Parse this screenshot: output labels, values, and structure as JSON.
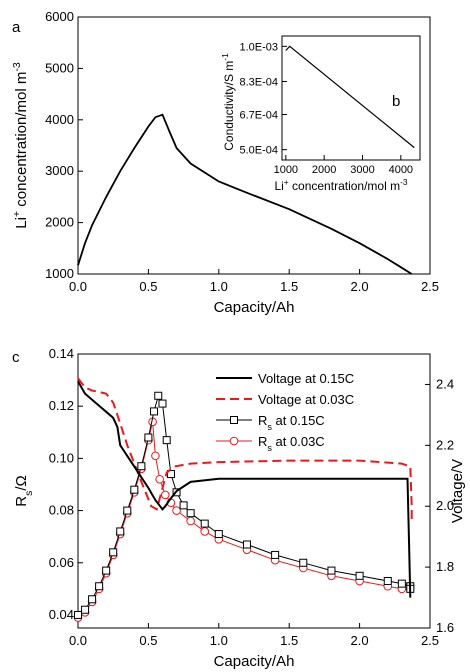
{
  "chart_data": [
    {
      "panel": "a",
      "type": "line",
      "xlabel": "Capacity/Ah",
      "ylabel": {
        "pre": "Li",
        "sup": "+",
        "post": " concentration/mol m",
        "sup2": "-3"
      },
      "xlim": [
        0,
        2.5
      ],
      "ylim": [
        1000,
        6000
      ],
      "xticks": [
        0.0,
        0.5,
        1.0,
        1.5,
        2.0,
        2.5
      ],
      "xtick_labels": [
        "0.0",
        "0.5",
        "1.0",
        "1.5",
        "2.0",
        "2.5"
      ],
      "yticks": [
        1000,
        2000,
        3000,
        4000,
        5000,
        6000
      ],
      "ytick_labels": [
        "1000",
        "2000",
        "3000",
        "4000",
        "5000",
        "6000"
      ],
      "series": [
        {
          "color": "#000000",
          "x": [
            0.0,
            0.05,
            0.1,
            0.2,
            0.3,
            0.4,
            0.5,
            0.55,
            0.6,
            0.65,
            0.7,
            0.8,
            1.0,
            1.2,
            1.5,
            1.8,
            2.0,
            2.2,
            2.3,
            2.37
          ],
          "y": [
            1170,
            1600,
            1950,
            2500,
            3000,
            3450,
            3870,
            4050,
            4100,
            3770,
            3450,
            3150,
            2800,
            2580,
            2260,
            1880,
            1600,
            1290,
            1120,
            1000
          ]
        }
      ]
    },
    {
      "panel": "b",
      "type": "line",
      "inset": true,
      "xlabel": {
        "pre": "Li",
        "sup": "+",
        "post": " concentration/mol m",
        "sup2": "-3"
      },
      "ylabel": {
        "pre": "Conductivity/S m",
        "sup": "-1"
      },
      "xlim": [
        900,
        4500
      ],
      "ylim": [
        0.00045,
        0.00105
      ],
      "xticks": [
        1000,
        2000,
        3000,
        4000
      ],
      "xtick_labels": [
        "1000",
        "2000",
        "3000",
        "4000"
      ],
      "yticks": [
        0.0005,
        0.00067,
        0.00083,
        0.001
      ],
      "ytick_labels": [
        "5.0E-04",
        "6.7E-04",
        "8.3E-04",
        "1.0E-03"
      ],
      "series": [
        {
          "color": "#000000",
          "x": [
            1000,
            1100,
            4350
          ],
          "y": [
            0.00098,
            0.001,
            0.00051
          ]
        }
      ]
    },
    {
      "panel": "c",
      "type": "line",
      "xlabel": "Capacity/Ah",
      "ylabel": {
        "pre": "R",
        "sub": "s",
        "post": "/Ω"
      },
      "y2label": "Voltage/V",
      "xlim": [
        0,
        2.5
      ],
      "ylim": [
        0.035,
        0.14
      ],
      "y2lim": [
        1.6,
        2.5
      ],
      "xticks": [
        0.0,
        0.5,
        1.0,
        1.5,
        2.0,
        2.5
      ],
      "xtick_labels": [
        "0.0",
        "0.5",
        "1.0",
        "1.5",
        "2.0",
        "2.5"
      ],
      "yticks": [
        0.04,
        0.06,
        0.08,
        0.1,
        0.12,
        0.14
      ],
      "ytick_labels": [
        "0.04",
        "0.06",
        "0.08",
        "0.10",
        "0.12",
        "0.14"
      ],
      "y2ticks": [
        1.6,
        1.8,
        2.0,
        2.2,
        2.4
      ],
      "y2tick_labels": [
        "1.6",
        "1.8",
        "2.0",
        "2.2",
        "2.4"
      ],
      "legend_position": "top-right",
      "series": [
        {
          "name": "Voltage at 0.15C",
          "axis": "right",
          "style": "solid",
          "color": "#000000",
          "x": [
            0.0,
            0.05,
            0.1,
            0.15,
            0.2,
            0.25,
            0.28,
            0.3,
            0.4,
            0.5,
            0.55,
            0.6,
            0.62,
            0.65,
            0.7,
            0.8,
            1.0,
            1.5,
            2.0,
            2.3,
            2.34,
            2.35,
            2.36
          ],
          "y": [
            2.41,
            2.37,
            2.35,
            2.33,
            2.31,
            2.29,
            2.26,
            2.2,
            2.13,
            2.06,
            2.02,
            1.99,
            2.0,
            2.02,
            2.05,
            2.08,
            2.09,
            2.09,
            2.09,
            2.09,
            2.09,
            1.9,
            1.7
          ]
        },
        {
          "name": "Voltage at 0.03C",
          "axis": "right",
          "style": "dashed",
          "color": "#e8191c",
          "x": [
            0.0,
            0.05,
            0.1,
            0.2,
            0.25,
            0.28,
            0.35,
            0.45,
            0.52,
            0.56,
            0.6,
            0.63,
            0.68,
            0.8,
            1.0,
            1.5,
            2.0,
            2.3,
            2.36,
            2.37,
            2.37
          ],
          "y": [
            2.42,
            2.39,
            2.38,
            2.37,
            2.34,
            2.3,
            2.2,
            2.08,
            2.0,
            1.99,
            2.06,
            2.11,
            2.13,
            2.14,
            2.145,
            2.15,
            2.15,
            2.14,
            2.13,
            2.0,
            1.95
          ]
        },
        {
          "name": "R_s at 0.15C",
          "axis": "left",
          "style": "solid",
          "marker": "square",
          "color": "#000000",
          "x": [
            0.0,
            0.05,
            0.1,
            0.15,
            0.2,
            0.25,
            0.3,
            0.35,
            0.4,
            0.45,
            0.5,
            0.54,
            0.57,
            0.6,
            0.63,
            0.66,
            0.7,
            0.75,
            0.8,
            0.9,
            1.0,
            1.2,
            1.4,
            1.6,
            1.8,
            2.0,
            2.2,
            2.3,
            2.36,
            2.36
          ],
          "y": [
            0.04,
            0.042,
            0.046,
            0.051,
            0.057,
            0.064,
            0.072,
            0.08,
            0.088,
            0.097,
            0.108,
            0.118,
            0.124,
            0.121,
            0.107,
            0.094,
            0.087,
            0.082,
            0.079,
            0.075,
            0.071,
            0.067,
            0.063,
            0.06,
            0.057,
            0.055,
            0.053,
            0.052,
            0.051,
            0.05
          ]
        },
        {
          "name": "R_s at 0.03C",
          "axis": "left",
          "style": "solid",
          "marker": "circle",
          "color": "#e8191c",
          "x": [
            0.0,
            0.05,
            0.1,
            0.15,
            0.2,
            0.25,
            0.3,
            0.35,
            0.4,
            0.45,
            0.5,
            0.53,
            0.55,
            0.58,
            0.62,
            0.66,
            0.7,
            0.8,
            0.9,
            1.0,
            1.2,
            1.4,
            1.6,
            1.8,
            2.0,
            2.2,
            2.3,
            2.35
          ],
          "y": [
            0.039,
            0.041,
            0.045,
            0.05,
            0.056,
            0.063,
            0.071,
            0.079,
            0.087,
            0.096,
            0.107,
            0.114,
            0.101,
            0.092,
            0.086,
            0.083,
            0.08,
            0.076,
            0.072,
            0.069,
            0.065,
            0.061,
            0.058,
            0.055,
            0.053,
            0.051,
            0.05,
            0.051
          ]
        }
      ]
    }
  ]
}
